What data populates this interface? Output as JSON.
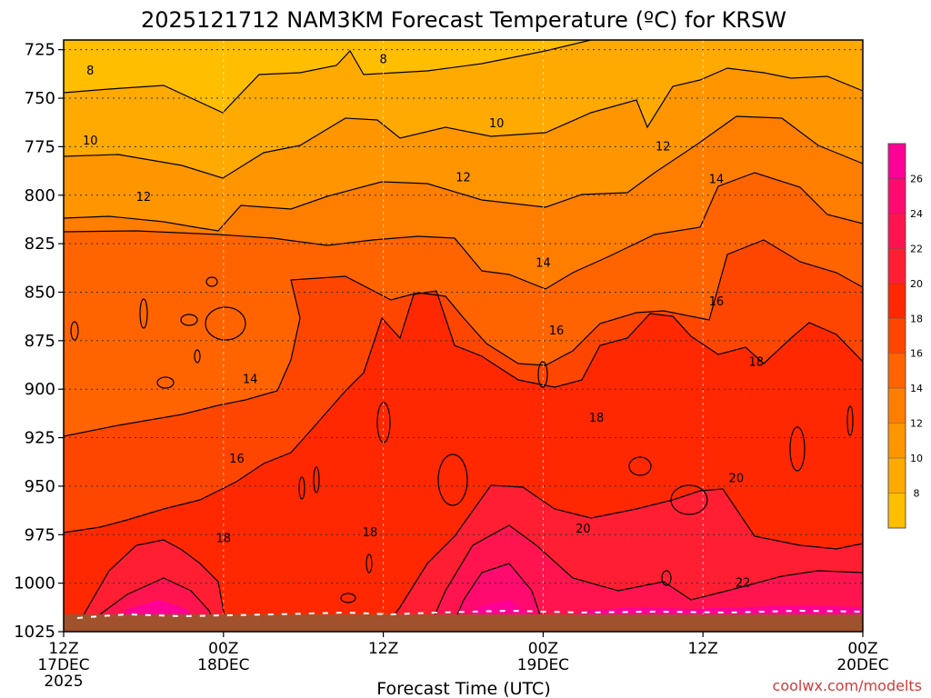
{
  "chart_data": {
    "type": "heatmap",
    "title": "2025121712 NAM3KM Forecast Temperature (ºC) for KRSW",
    "xlabel": "Forecast Time (UTC)",
    "ylabel": "",
    "credit": "coolwx.com/modelts",
    "y_ticks": [
      "725",
      "750",
      "775",
      "800",
      "825",
      "850",
      "875",
      "900",
      "925",
      "950",
      "975",
      "1000",
      "1025"
    ],
    "y_values": [
      725,
      750,
      775,
      800,
      825,
      850,
      875,
      900,
      925,
      950,
      975,
      1000,
      1025
    ],
    "ylim": [
      720,
      1025
    ],
    "x_ticks": [
      {
        "hour": 0,
        "l1": "12Z",
        "l2": "17DEC",
        "l3": "2025"
      },
      {
        "hour": 12,
        "l1": "00Z",
        "l2": "18DEC",
        "l3": ""
      },
      {
        "hour": 24,
        "l1": "12Z",
        "l2": "",
        "l3": ""
      },
      {
        "hour": 36,
        "l1": "00Z",
        "l2": "19DEC",
        "l3": ""
      },
      {
        "hour": 48,
        "l1": "12Z",
        "l2": "",
        "l3": ""
      },
      {
        "hour": 60,
        "l1": "00Z",
        "l2": "20DEC",
        "l3": ""
      }
    ],
    "xlim": [
      0,
      60
    ],
    "colorbar": {
      "levels": [
        8,
        10,
        12,
        14,
        16,
        18,
        20,
        22,
        24,
        26
      ],
      "bands": [
        {
          "min": 6,
          "max": 8,
          "color": "#ffbe00"
        },
        {
          "min": 8,
          "max": 10,
          "color": "#ffaa00"
        },
        {
          "min": 10,
          "max": 12,
          "color": "#ff9600"
        },
        {
          "min": 12,
          "max": 14,
          "color": "#ff7e00"
        },
        {
          "min": 14,
          "max": 16,
          "color": "#ff6400"
        },
        {
          "min": 16,
          "max": 18,
          "color": "#ff4600"
        },
        {
          "min": 18,
          "max": 20,
          "color": "#ff2800"
        },
        {
          "min": 20,
          "max": 22,
          "color": "#ff1e32"
        },
        {
          "min": 22,
          "max": 24,
          "color": "#ff1450"
        },
        {
          "min": 24,
          "max": 26,
          "color": "#ff0a6e"
        },
        {
          "min": 26,
          "max": 28,
          "color": "#ff0096"
        }
      ]
    },
    "contour_labels": [
      {
        "text": "8",
        "hour": 2,
        "p": 736
      },
      {
        "text": "8",
        "hour": 24,
        "p": 730
      },
      {
        "text": "10",
        "hour": 2,
        "p": 772
      },
      {
        "text": "10",
        "hour": 32.5,
        "p": 763
      },
      {
        "text": "12",
        "hour": 6,
        "p": 801
      },
      {
        "text": "12",
        "hour": 30,
        "p": 791
      },
      {
        "text": "12",
        "hour": 45,
        "p": 775
      },
      {
        "text": "14",
        "hour": 14,
        "p": 895
      },
      {
        "text": "14",
        "hour": 36,
        "p": 835
      },
      {
        "text": "14",
        "hour": 49,
        "p": 792
      },
      {
        "text": "16",
        "hour": 13,
        "p": 936
      },
      {
        "text": "16",
        "hour": 37,
        "p": 870
      },
      {
        "text": "16",
        "hour": 49,
        "p": 855
      },
      {
        "text": "18",
        "hour": 12,
        "p": 977
      },
      {
        "text": "18",
        "hour": 23,
        "p": 974
      },
      {
        "text": "18",
        "hour": 40,
        "p": 915
      },
      {
        "text": "18",
        "hour": 52,
        "p": 886
      },
      {
        "text": "20",
        "hour": 39,
        "p": 972
      },
      {
        "text": "20",
        "hour": 50.5,
        "p": 946
      },
      {
        "text": "22",
        "hour": 51,
        "p": 1000
      }
    ]
  }
}
